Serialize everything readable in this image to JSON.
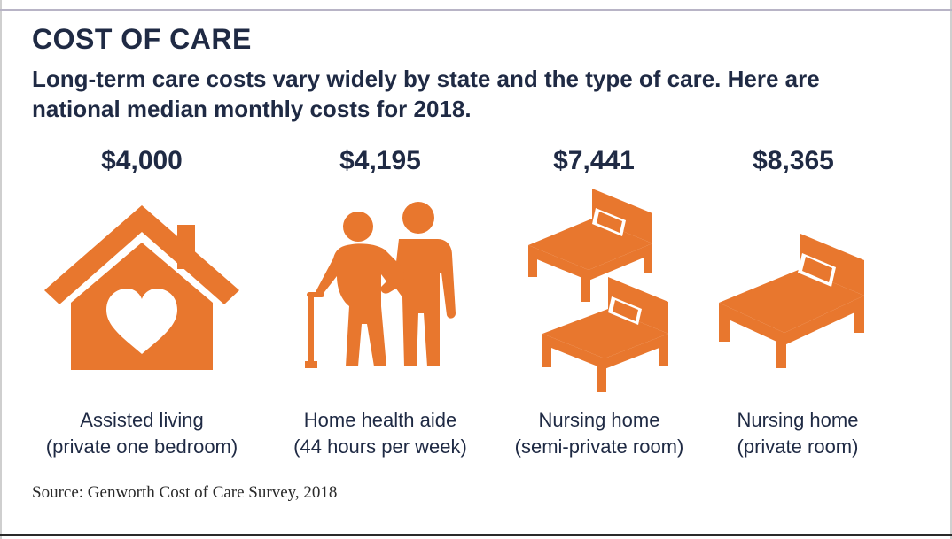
{
  "header": {
    "title": "COST OF CARE",
    "subtitle_line1": "Long-term care costs vary widely by state and the type of care. Here are",
    "subtitle_line2": "national median monthly costs for 2018."
  },
  "items": [
    {
      "price": "$4,000",
      "label_line1": "Assisted living",
      "label_line2": "(private one bedroom)",
      "icon": "house-heart-icon"
    },
    {
      "price": "$4,195",
      "label_line1": "Home health aide",
      "label_line2": "(44 hours per week)",
      "icon": "caregiver-with-elder-icon"
    },
    {
      "price": "$7,441",
      "label_line1": "Nursing home",
      "label_line2": "(semi-private room)",
      "icon": "two-beds-icon"
    },
    {
      "price": "$8,365",
      "label_line1": "Nursing home",
      "label_line2": "(private room)",
      "icon": "single-bed-icon"
    }
  ],
  "footer": {
    "source": "Source: Genworth Cost of Care Survey, 2018"
  },
  "colors": {
    "icon_orange": "#e8772e",
    "text_navy": "#1f2a44"
  }
}
